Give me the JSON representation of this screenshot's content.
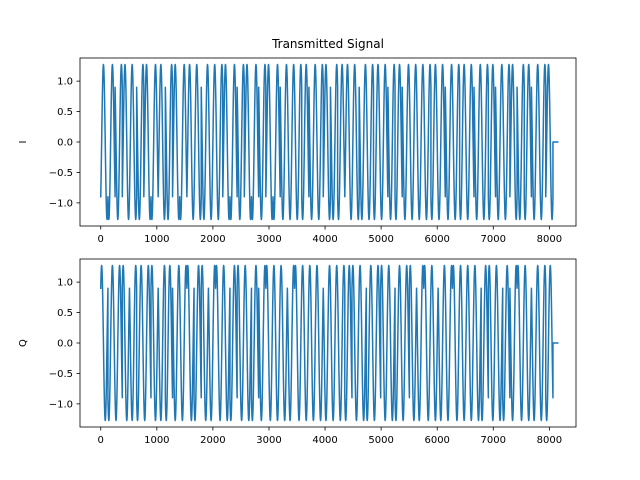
{
  "chart_data": [
    {
      "type": "line",
      "title": "Transmitted Signal",
      "xlabel": "",
      "ylabel": "I",
      "xlim": [
        -370,
        8475
      ],
      "ylim": [
        -1.38,
        1.38
      ],
      "xticks": [
        0,
        1000,
        2000,
        3000,
        4000,
        5000,
        6000,
        7000,
        8000
      ],
      "yticks": [
        -1.0,
        -0.5,
        0.0,
        0.5,
        1.0
      ],
      "xtick_labels": [
        "0",
        "1000",
        "2000",
        "3000",
        "4000",
        "5000",
        "6000",
        "7000",
        "8000"
      ],
      "ytick_labels": [
        "−1.0",
        "−0.5",
        "0.0",
        "0.5",
        "1.0"
      ],
      "grid": false,
      "symbol_period": 128,
      "num_symbols": 63,
      "amplitude": 1.2727,
      "phases_deg": [
        -135,
        135,
        45,
        -135,
        -135,
        45,
        -135,
        135,
        -135,
        45,
        -135,
        135,
        -135,
        -135,
        45,
        45,
        45,
        -135,
        135,
        45,
        -135,
        135,
        45,
        -135,
        135,
        45,
        45,
        45,
        135,
        45,
        45,
        -135,
        45,
        135,
        -135,
        -135,
        45,
        45,
        135,
        135,
        45,
        135,
        45,
        45,
        45,
        45,
        135,
        135,
        45,
        45,
        135,
        135,
        45,
        45,
        135,
        45,
        45,
        -135,
        45,
        135,
        45,
        45,
        -135
      ],
      "tail": [
        {
          "x": 8064,
          "y": 0
        },
        {
          "x": 8150,
          "y": 0
        }
      ],
      "series": [
        {
          "color": "#1f77b4",
          "component": "cos"
        }
      ]
    },
    {
      "type": "line",
      "title": "",
      "xlabel": "",
      "ylabel": "Q",
      "xlim": [
        -370,
        8475
      ],
      "ylim": [
        -1.38,
        1.38
      ],
      "xticks": [
        0,
        1000,
        2000,
        3000,
        4000,
        5000,
        6000,
        7000,
        8000
      ],
      "yticks": [
        -1.0,
        -0.5,
        0.0,
        0.5,
        1.0
      ],
      "xtick_labels": [
        "0",
        "1000",
        "2000",
        "3000",
        "4000",
        "5000",
        "6000",
        "7000",
        "8000"
      ],
      "ytick_labels": [
        "−1.0",
        "−0.5",
        "0.0",
        "0.5",
        "1.0"
      ],
      "grid": false,
      "symbol_period": 128,
      "num_symbols": 63,
      "amplitude": 1.2727,
      "phases_deg": [
        45,
        -135,
        -135,
        45,
        135,
        -135,
        -135,
        45,
        135,
        -135,
        135,
        135,
        45,
        -135,
        45,
        135,
        45,
        45,
        -135,
        45,
        45,
        -135,
        135,
        45,
        45,
        45,
        135,
        45,
        45,
        45,
        45,
        135,
        135,
        135,
        -135,
        45,
        45,
        -135,
        -135,
        45,
        45,
        -135,
        -135,
        45,
        135,
        45,
        45,
        135,
        135,
        45,
        45,
        45,
        45,
        -135,
        45,
        45,
        -135,
        135,
        45,
        45,
        135,
        135,
        -135
      ],
      "tail": [
        {
          "x": 8064,
          "y": 0
        },
        {
          "x": 8150,
          "y": 0
        }
      ],
      "series": [
        {
          "color": "#1f77b4",
          "component": "sin"
        }
      ]
    }
  ]
}
